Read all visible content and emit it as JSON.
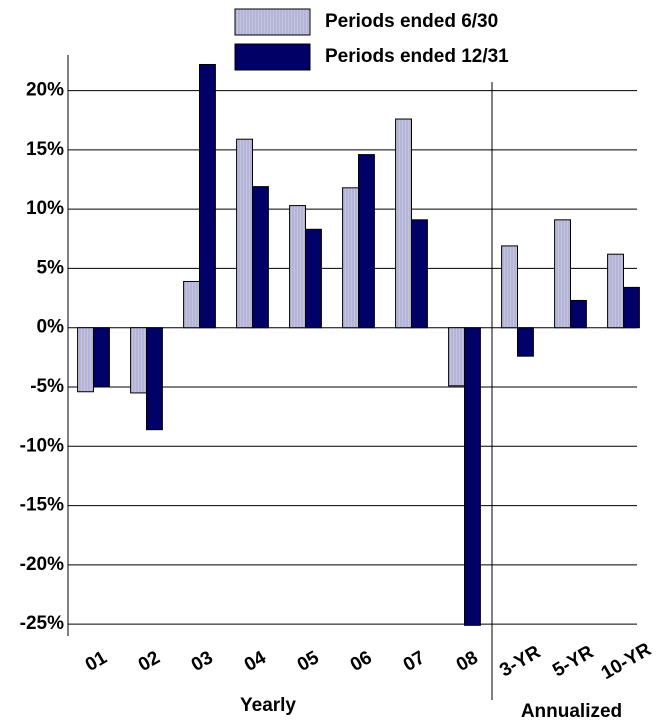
{
  "chart_data": {
    "type": "bar",
    "categories": [
      "01",
      "02",
      "03",
      "04",
      "05",
      "06",
      "07",
      "08",
      "3-YR",
      "5-YR",
      "10-YR"
    ],
    "series": [
      {
        "name": "Periods ended 6/30",
        "color": "#b4b4d6",
        "values": [
          -5.4,
          -5.5,
          3.9,
          15.9,
          10.3,
          11.8,
          17.6,
          -4.9,
          6.9,
          9.1,
          6.2
        ]
      },
      {
        "name": "Periods ended 12/31",
        "color": "#000066",
        "values": [
          -5.0,
          -8.6,
          22.2,
          11.9,
          8.3,
          14.6,
          9.1,
          -25.1,
          -2.4,
          2.3,
          3.4
        ]
      }
    ],
    "groups": [
      {
        "label": "Yearly",
        "count": 8
      },
      {
        "label": "Annualized",
        "count": 3
      }
    ],
    "ylim": [
      -26,
      23
    ],
    "yticks": [
      {
        "value": -25,
        "label": "-25%"
      },
      {
        "value": -20,
        "label": "-20%"
      },
      {
        "value": -15,
        "label": "-15%"
      },
      {
        "value": -10,
        "label": "-10%"
      },
      {
        "value": -5,
        "label": "-5%"
      },
      {
        "value": 0,
        "label": "0%"
      },
      {
        "value": 5,
        "label": "5%"
      },
      {
        "value": 10,
        "label": "10%"
      },
      {
        "value": 15,
        "label": "15%"
      },
      {
        "value": 20,
        "label": "20%"
      }
    ],
    "grid": true,
    "legend": "top"
  }
}
